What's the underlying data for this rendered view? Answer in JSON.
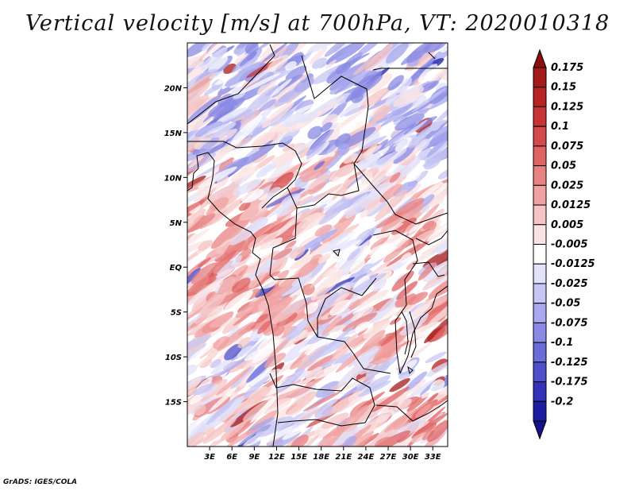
{
  "title": "Vertical velocity [m/s] at 700hPa, VT: 2020010318",
  "credit": "GrADS: IGES/COLA",
  "map": {
    "lon_range": [
      0,
      35
    ],
    "lat_range": [
      -20,
      25
    ],
    "lat_ticks": [
      {
        "value": 20,
        "label": "20N"
      },
      {
        "value": 15,
        "label": "15N"
      },
      {
        "value": 10,
        "label": "10N"
      },
      {
        "value": 5,
        "label": "5N"
      },
      {
        "value": 0,
        "label": "EQ"
      },
      {
        "value": -5,
        "label": "5S"
      },
      {
        "value": -10,
        "label": "10S"
      },
      {
        "value": -15,
        "label": "15S"
      }
    ],
    "lon_ticks": [
      {
        "value": 3,
        "label": "3E"
      },
      {
        "value": 6,
        "label": "6E"
      },
      {
        "value": 9,
        "label": "9E"
      },
      {
        "value": 12,
        "label": "12E"
      },
      {
        "value": 15,
        "label": "15E"
      },
      {
        "value": 18,
        "label": "18E"
      },
      {
        "value": 21,
        "label": "21E"
      },
      {
        "value": 24,
        "label": "24E"
      },
      {
        "value": 27,
        "label": "27E"
      },
      {
        "value": 30,
        "label": "30E"
      },
      {
        "value": 33,
        "label": "33E"
      }
    ]
  },
  "colorbar": {
    "levels": [
      {
        "label": "0.175",
        "color": "#a51a1a"
      },
      {
        "label": "0.15",
        "color": "#b82424"
      },
      {
        "label": "0.125",
        "color": "#c83434"
      },
      {
        "label": "0.1",
        "color": "#d44a4a"
      },
      {
        "label": "0.075",
        "color": "#e06464"
      },
      {
        "label": "0.05",
        "color": "#e88282"
      },
      {
        "label": "0.025",
        "color": "#f0a2a2"
      },
      {
        "label": "0.0125",
        "color": "#f6c4c4"
      },
      {
        "label": "0.005",
        "color": "#fbe3e3"
      },
      {
        "label": "-0.005",
        "color": "#ffffff"
      },
      {
        "label": "-0.0125",
        "color": "#e2e2fa"
      },
      {
        "label": "-0.025",
        "color": "#c6c6f4"
      },
      {
        "label": "-0.05",
        "color": "#a8a8ee"
      },
      {
        "label": "-0.075",
        "color": "#8a8ae4"
      },
      {
        "label": "-0.1",
        "color": "#6c6cd8"
      },
      {
        "label": "-0.125",
        "color": "#5050ca"
      },
      {
        "label": "-0.175",
        "color": "#3232b8"
      },
      {
        "label": "-0.2",
        "color": "#1c1ca2"
      }
    ],
    "top_arrow_color": "#8c1010",
    "bottom_arrow_color": "#14148a"
  }
}
